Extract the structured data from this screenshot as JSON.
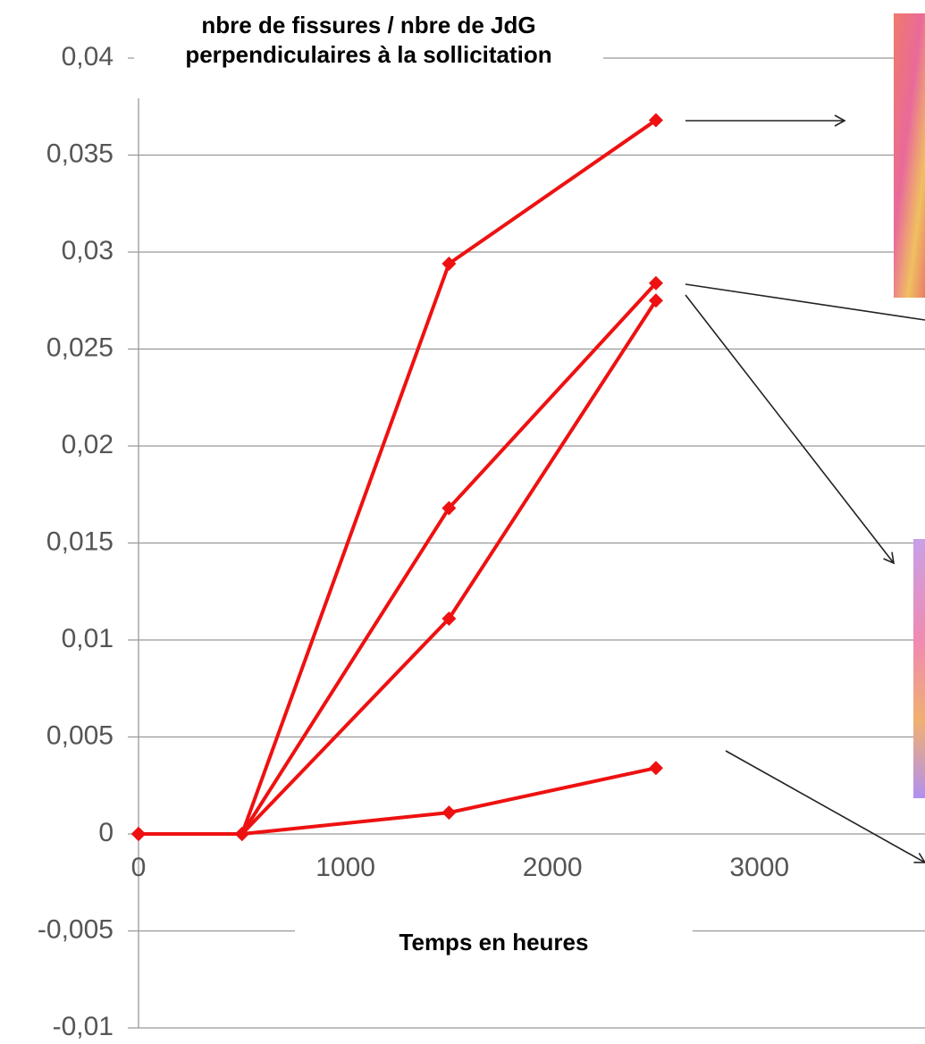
{
  "chart_data": {
    "type": "line",
    "title": "nbre de fissures / nbre de JdG perpendiculaires à la sollicitation",
    "x_label": "Temps en heures",
    "x": [
      0,
      500,
      1500,
      2500
    ],
    "series": [
      {
        "color": "#ee1111",
        "values": [
          0,
          0,
          0.0294,
          0.0368
        ]
      },
      {
        "color": "#ee1111",
        "values": [
          0,
          0,
          0.0168,
          0.0284
        ]
      },
      {
        "color": "#ee1111",
        "values": [
          0,
          0,
          0.0111,
          0.0275
        ]
      },
      {
        "color": "#ee1111",
        "values": [
          0,
          0,
          0.0011,
          0.0034
        ]
      }
    ],
    "xlim": [
      0,
      3800
    ],
    "xticks": [
      0,
      1000,
      2000,
      3000
    ],
    "ylim": [
      -0.01,
      0.04
    ],
    "yticks": [
      {
        "value": -0.01,
        "label": "-0,01"
      },
      {
        "value": -0.005,
        "label": "-0,005"
      },
      0,
      {
        "value": 0.005,
        "label": "0,005"
      },
      {
        "value": 0.01,
        "label": "0,01"
      },
      {
        "value": 0.015,
        "label": "0,015"
      },
      {
        "value": 0.02,
        "label": "0,02"
      },
      {
        "value": 0.025,
        "label": "0,025"
      },
      {
        "value": 0.03,
        "label": "0,03"
      },
      {
        "value": 0.035,
        "label": "0,035"
      },
      {
        "value": 0.04,
        "label": "0,04"
      }
    ],
    "grid": true
  }
}
